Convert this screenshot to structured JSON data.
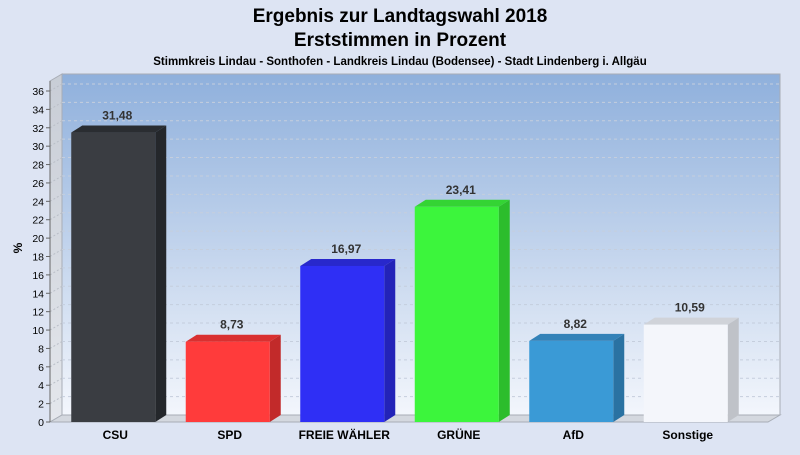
{
  "chart_data": {
    "type": "bar",
    "title": "Ergebnis zur Landtagswahl 2018",
    "subtitle": "Erststimmen in Prozent",
    "caption": "Stimmkreis Lindau - Sonthofen - Landkreis Lindau (Bodensee) - Stadt Lindenberg i. Allgäu",
    "ylabel": "%",
    "xlabel": "",
    "ylim": [
      0,
      36
    ],
    "yticks": [
      "0",
      "2",
      "4",
      "6",
      "8",
      "10",
      "12",
      "14",
      "16",
      "18",
      "20",
      "22",
      "24",
      "26",
      "28",
      "30",
      "32",
      "34",
      "36"
    ],
    "grid": true,
    "categories": [
      "CSU",
      "SPD",
      "FREIE WÄHLER",
      "GRÜNE",
      "AfD",
      "Sonstige"
    ],
    "values": [
      31.48,
      8.73,
      16.97,
      23.41,
      8.82,
      10.59
    ],
    "value_labels": [
      "31,48",
      "8,73",
      "16,97",
      "23,41",
      "8,82",
      "10,59"
    ],
    "colors": [
      "#3a3d42",
      "#ff3b3b",
      "#2f2ff5",
      "#3cf53c",
      "#3a9ad6",
      "#f4f6fb"
    ],
    "side_colors": [
      "#24272b",
      "#c22a2a",
      "#2323b8",
      "#2cbd2c",
      "#2a72a2",
      "#bfc2c8"
    ],
    "top_colors": [
      "#2a2d31",
      "#d93030",
      "#2828cc",
      "#34d434",
      "#3382b8",
      "#d0d3d9"
    ]
  }
}
